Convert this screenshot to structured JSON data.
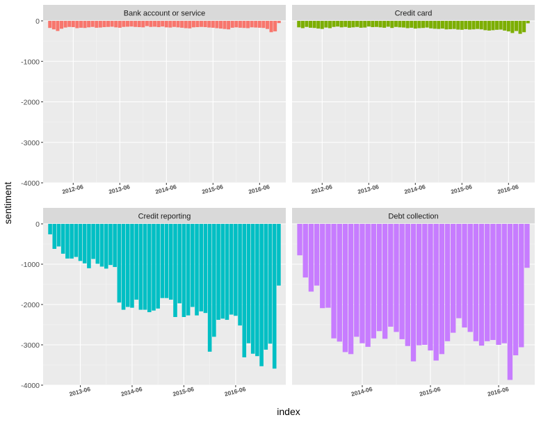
{
  "chart_data": {
    "type": "bar",
    "xlabel": "index",
    "ylabel": "sentiment",
    "ylim": [
      -4000,
      0
    ],
    "yticks": [
      0,
      -1000,
      -2000,
      -3000,
      -4000
    ],
    "facet_order": [
      "Bank account or service",
      "Credit card",
      "Credit reporting",
      "Debt collection"
    ],
    "panels": [
      {
        "name": "Bank account or service",
        "color": "#F8766D",
        "x_start": "2011-12",
        "xticks": [
          "2012-06",
          "2013-06",
          "2014-06",
          "2015-06",
          "2016-06"
        ],
        "values": [
          -175,
          -210,
          -250,
          -195,
          -165,
          -150,
          -155,
          -180,
          -170,
          -175,
          -160,
          -150,
          -170,
          -165,
          -155,
          -150,
          -145,
          -160,
          -170,
          -150,
          -145,
          -140,
          -150,
          -155,
          -160,
          -130,
          -150,
          -145,
          -155,
          -140,
          -160,
          -165,
          -150,
          -160,
          -170,
          -180,
          -185,
          -160,
          -155,
          -150,
          -155,
          -165,
          -170,
          -180,
          -190,
          -200,
          -210,
          -170,
          -160,
          -170,
          -175,
          -180,
          -160,
          -165,
          -170,
          -175,
          -200,
          -280,
          -260,
          -55
        ]
      },
      {
        "name": "Credit card",
        "color": "#7CAE00",
        "x_start": "2011-12",
        "xticks": [
          "2012-06",
          "2013-06",
          "2014-06",
          "2015-06",
          "2016-06"
        ],
        "values": [
          -160,
          -180,
          -150,
          -170,
          -175,
          -190,
          -200,
          -165,
          -180,
          -150,
          -140,
          -160,
          -150,
          -170,
          -160,
          -150,
          -170,
          -165,
          -140,
          -155,
          -150,
          -160,
          -170,
          -145,
          -175,
          -150,
          -160,
          -165,
          -180,
          -170,
          -190,
          -180,
          -175,
          -165,
          -185,
          -195,
          -200,
          -190,
          -210,
          -205,
          -200,
          -215,
          -220,
          -205,
          -215,
          -210,
          -200,
          -210,
          -230,
          -240,
          -230,
          -220,
          -215,
          -240,
          -260,
          -300,
          -250,
          -320,
          -280,
          -60
        ]
      },
      {
        "name": "Credit reporting",
        "color": "#00BFC4",
        "x_start": "2012-11",
        "xticks": [
          "2013-06",
          "2014-06",
          "2015-06",
          "2016-06"
        ],
        "values": [
          -260,
          -620,
          -560,
          -740,
          -860,
          -860,
          -820,
          -920,
          -980,
          -1100,
          -870,
          -990,
          -1060,
          -1110,
          -1020,
          -1070,
          -1950,
          -2130,
          -2060,
          -2080,
          -1880,
          -2130,
          -2130,
          -2190,
          -2150,
          -2100,
          -1840,
          -1840,
          -1880,
          -2310,
          -1970,
          -2310,
          -2270,
          -2060,
          -2270,
          -2170,
          -2210,
          -3170,
          -2800,
          -2380,
          -2350,
          -2380,
          -2250,
          -2280,
          -2520,
          -3310,
          -2960,
          -3220,
          -3280,
          -3530,
          -3120,
          -2970,
          -3590,
          -1530
        ]
      },
      {
        "name": "Debt collection",
        "color": "#C77CFF",
        "x_start": "2013-07",
        "xticks": [
          "2014-06",
          "2015-06",
          "2016-06"
        ],
        "values": [
          -780,
          -1330,
          -1680,
          -1530,
          -2090,
          -2080,
          -2840,
          -2920,
          -3180,
          -3230,
          -2800,
          -2960,
          -3050,
          -2840,
          -2660,
          -2850,
          -2550,
          -2680,
          -2860,
          -3030,
          -3410,
          -3010,
          -3000,
          -3140,
          -3390,
          -3230,
          -2910,
          -2700,
          -2340,
          -2570,
          -2680,
          -2910,
          -3020,
          -2910,
          -2880,
          -3000,
          -2960,
          -3870,
          -3260,
          -3060,
          -1090
        ]
      }
    ]
  }
}
